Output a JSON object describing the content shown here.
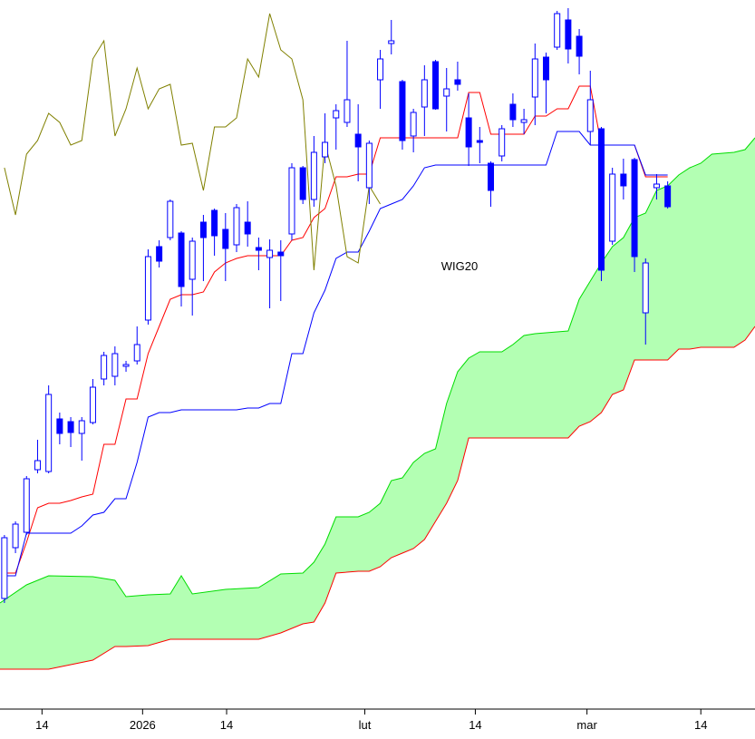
{
  "chart_data": {
    "type": "candlestick",
    "title": "WIG20",
    "xlim": [
      -0.4,
      67.9
    ],
    "ylim": [
      0,
      780
    ],
    "xticks": [
      {
        "value": 3.4,
        "label": "14"
      },
      {
        "value": 12.5,
        "label": "2026"
      },
      {
        "value": 20.1,
        "label": "14"
      },
      {
        "value": 32.6,
        "label": "lut"
      },
      {
        "value": 42.6,
        "label": "14"
      },
      {
        "value": 52.7,
        "label": "mar"
      },
      {
        "value": 63.0,
        "label": "14"
      }
    ],
    "color": "#0000ff",
    "x": [
      0,
      1,
      2,
      3,
      4,
      5,
      6,
      7,
      8,
      9,
      10,
      11,
      12,
      13,
      14,
      15,
      16,
      17,
      18,
      19,
      20,
      21,
      22,
      23,
      24,
      25,
      26,
      27,
      28,
      29,
      30,
      31,
      32,
      33,
      34,
      35,
      36,
      37,
      38,
      39,
      40,
      41,
      42,
      43,
      44,
      45,
      46,
      47,
      48,
      49,
      50,
      51,
      52,
      53,
      54,
      55,
      56,
      57,
      58,
      59,
      60
    ],
    "open": [
      120,
      176,
      193,
      262,
      260,
      318,
      315,
      302,
      314,
      362,
      365,
      376,
      382,
      427,
      508,
      518,
      523,
      472,
      535,
      548,
      527,
      510,
      535,
      507,
      496,
      502,
      522,
      595,
      560,
      607,
      650,
      645,
      632,
      573,
      692,
      732,
      690,
      630,
      662,
      712,
      674,
      692,
      650,
      625,
      600,
      608,
      665,
      645,
      673,
      717,
      728,
      758,
      740,
      635,
      638,
      514,
      588,
      604,
      435,
      573,
      575
    ],
    "high": [
      190,
      205,
      255,
      295,
      355,
      325,
      320,
      320,
      362,
      392,
      398,
      382,
      420,
      505,
      515,
      560,
      525,
      518,
      543,
      550,
      545,
      555,
      558,
      518,
      516,
      515,
      600,
      597,
      630,
      655,
      665,
      735,
      665,
      625,
      725,
      758,
      692,
      660,
      708,
      714,
      705,
      712,
      677,
      640,
      602,
      642,
      677,
      660,
      732,
      722,
      768,
      771,
      748,
      702,
      640,
      595,
      605,
      606,
      495,
      588,
      580
    ],
    "low": [
      115,
      170,
      190,
      258,
      258,
      290,
      287,
      272,
      312,
      355,
      355,
      370,
      378,
      422,
      485,
      515,
      442,
      432,
      470,
      498,
      470,
      502,
      508,
      482,
      440,
      448,
      515,
      555,
      552,
      600,
      615,
      640,
      580,
      555,
      660,
      720,
      615,
      612,
      630,
      659,
      635,
      680,
      597,
      600,
      552,
      602,
      640,
      632,
      642,
      655,
      725,
      710,
      698,
      620,
      470,
      510,
      560,
      480,
      400,
      560,
      550
    ],
    "close": [
      187,
      202,
      252,
      272,
      345,
      302,
      303,
      316,
      353,
      388,
      390,
      378,
      400,
      497,
      492,
      558,
      464,
      514,
      518,
      520,
      506,
      551,
      522,
      504,
      504,
      498,
      595,
      560,
      612,
      623,
      658,
      670,
      618,
      622,
      715,
      735,
      625,
      656,
      692,
      660,
      682,
      687,
      618,
      623,
      570,
      638,
      648,
      648,
      715,
      692,
      765,
      726,
      718,
      670,
      482,
      588,
      575,
      497,
      490,
      577,
      552
    ],
    "lines": [
      {
        "color": "#ff0000",
        "x": [
          0,
          1,
          2,
          3,
          4,
          5,
          6,
          7,
          8,
          9,
          10,
          11,
          12,
          13,
          14,
          15,
          16,
          17,
          18,
          19,
          20,
          21,
          22,
          23,
          24,
          25,
          26,
          27,
          28,
          29,
          30,
          31,
          32,
          33,
          34,
          35,
          36,
          37,
          38,
          39,
          40,
          41,
          42,
          43,
          44,
          45,
          46,
          47,
          48,
          49,
          50,
          51,
          52,
          53,
          54,
          55,
          56,
          57,
          58,
          59,
          60
        ],
        "values": [
          148,
          148,
          182,
          220,
          225,
          225,
          228,
          232,
          235,
          290,
          290,
          340,
          340,
          390,
          420,
          450,
          455,
          455,
          458,
          480,
          490,
          495,
          498,
          498,
          498,
          498,
          515,
          518,
          540,
          550,
          585,
          585,
          588,
          588,
          628,
          628,
          628,
          628,
          628,
          628,
          628,
          628,
          678,
          678,
          632,
          632,
          632,
          632,
          652,
          652,
          660,
          660,
          685,
          685,
          620,
          620,
          620,
          620,
          585,
          585,
          585
        ]
      },
      {
        "color": "#0000ff",
        "x": [
          0,
          1,
          2,
          3,
          4,
          5,
          6,
          7,
          8,
          9,
          10,
          11,
          12,
          13,
          14,
          15,
          16,
          17,
          18,
          19,
          20,
          21,
          22,
          23,
          24,
          25,
          26,
          27,
          28,
          29,
          30,
          31,
          32,
          33,
          34,
          35,
          36,
          37,
          38,
          39,
          40,
          41,
          42,
          43,
          44,
          45,
          46,
          47,
          48,
          49,
          50,
          51,
          52,
          53,
          54,
          55,
          56,
          57,
          58,
          59,
          60
        ],
        "values": [
          145,
          145,
          192,
          192,
          192,
          192,
          192,
          200,
          212,
          215,
          230,
          230,
          270,
          320,
          325,
          325,
          328,
          328,
          328,
          328,
          328,
          328,
          330,
          330,
          335,
          335,
          390,
          390,
          435,
          460,
          495,
          502,
          502,
          525,
          550,
          555,
          560,
          575,
          595,
          598,
          598,
          598,
          598,
          598,
          598,
          598,
          598,
          598,
          598,
          598,
          635,
          635,
          635,
          620,
          620,
          620,
          620,
          620,
          587,
          587,
          587
        ]
      },
      {
        "color": "#808000",
        "x": [
          0,
          1,
          2,
          3,
          4,
          5,
          6,
          7,
          8,
          9,
          10,
          11,
          12,
          13,
          14,
          15,
          16,
          17,
          18,
          19,
          20,
          21,
          22,
          23,
          24,
          25,
          26,
          27,
          28,
          29,
          30,
          31,
          32,
          33,
          34
        ],
        "values": [
          595,
          543,
          610,
          625,
          655,
          645,
          620,
          625,
          715,
          735,
          630,
          660,
          705,
          660,
          682,
          687,
          620,
          622,
          570,
          640,
          640,
          650,
          715,
          695,
          765,
          725,
          715,
          670,
          482,
          622,
          575,
          497,
          490,
          575,
          555
        ]
      }
    ],
    "cloud": {
      "fill": "#b3ffb3",
      "upper_color": "#00dd00",
      "lower_color": "#ff0000",
      "x": [
        -0.4,
        2,
        4,
        8,
        10,
        11,
        13,
        15,
        16,
        17,
        20,
        23,
        25,
        27,
        28,
        29,
        30,
        32,
        33,
        34,
        35,
        36,
        37,
        38,
        39,
        40,
        41,
        42,
        43,
        45,
        46,
        47,
        48,
        50,
        51,
        52,
        53,
        54,
        55,
        56,
        57,
        58,
        59,
        60,
        61,
        62,
        63,
        64,
        66,
        67,
        67.9
      ],
      "upper": [
        115,
        135,
        145,
        144,
        140,
        122,
        124,
        125,
        145,
        125,
        130,
        132,
        147,
        148,
        160,
        180,
        210,
        210,
        215,
        225,
        250,
        253,
        270,
        280,
        285,
        335,
        370,
        385,
        392,
        392,
        400,
        410,
        412,
        414,
        415,
        450,
        470,
        490,
        508,
        518,
        540,
        545,
        570,
        575,
        587,
        595,
        600,
        610,
        612,
        615,
        628
      ],
      "lower": [
        42,
        42,
        42,
        52,
        67,
        67,
        68,
        75,
        75,
        75,
        75,
        75,
        82,
        92,
        94,
        115,
        148,
        150,
        150,
        155,
        165,
        170,
        175,
        185,
        205,
        225,
        250,
        297,
        297,
        297,
        297,
        297,
        297,
        297,
        297,
        310,
        315,
        325,
        345,
        350,
        383,
        383,
        383,
        383,
        395,
        395,
        397,
        397,
        397,
        405,
        420
      ]
    }
  }
}
